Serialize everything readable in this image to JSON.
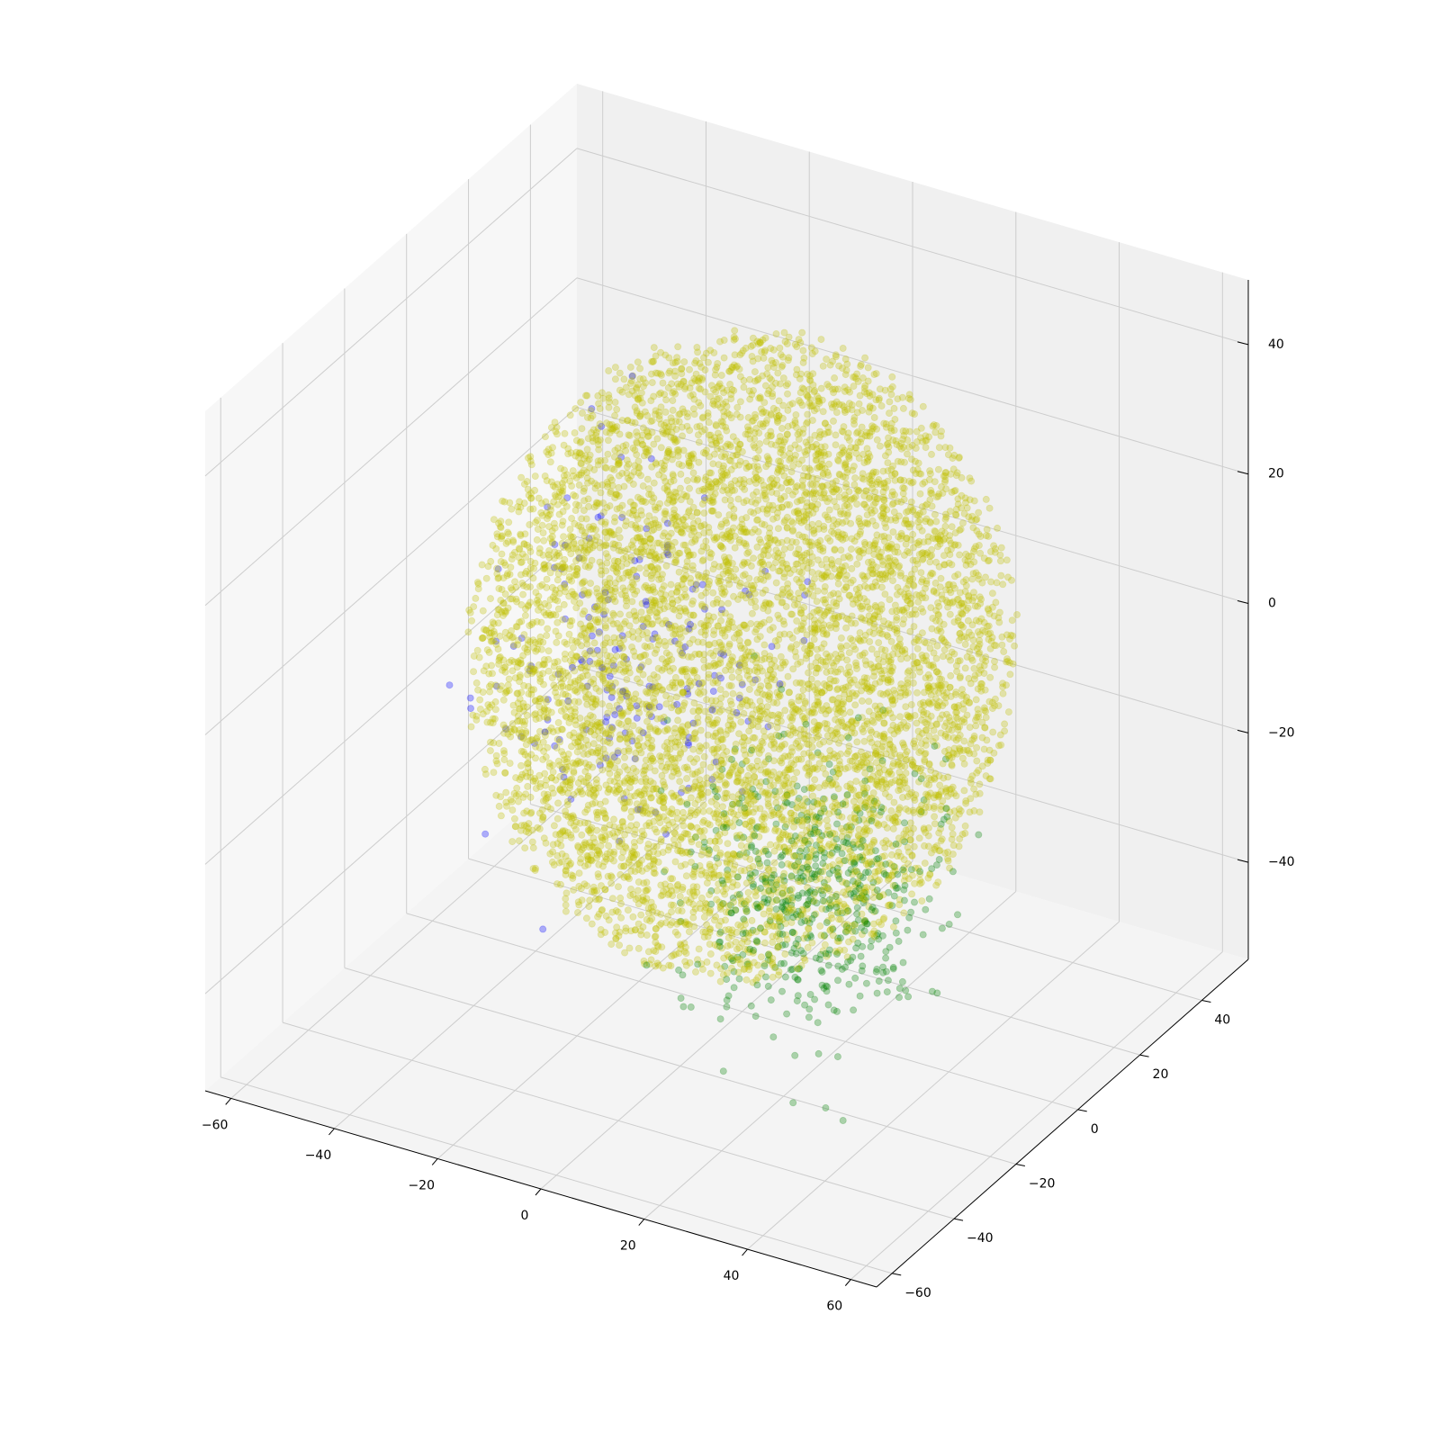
{
  "chart_data": {
    "type": "scatter",
    "projection": "3d",
    "title": "",
    "xlabel": "",
    "ylabel": "",
    "zlabel": "",
    "grid": true,
    "legend": "none",
    "xlim": [
      -65,
      65
    ],
    "ylim": [
      -65,
      55
    ],
    "zlim": [
      -55,
      50
    ],
    "x_ticks": [
      -60,
      -40,
      -20,
      0,
      20,
      40,
      60
    ],
    "x_tick_labels": [
      "−60",
      "−40",
      "−20",
      "0",
      "20",
      "40",
      "60"
    ],
    "y_ticks": [
      -60,
      -40,
      -20,
      0,
      20,
      40
    ],
    "y_tick_labels": [
      "−60",
      "−40",
      "−20",
      "0",
      "20",
      "40"
    ],
    "z_ticks": [
      -40,
      -20,
      0,
      20,
      40
    ],
    "z_tick_labels": [
      "−40",
      "−20",
      "0",
      "20",
      "40"
    ],
    "series": [
      {
        "color": "#bfbf00",
        "alpha": 0.3,
        "count": 7000,
        "shape": "ball",
        "center": [
          0,
          0,
          0
        ],
        "radius": 46
      },
      {
        "color": "#008000",
        "alpha": 0.3,
        "count": 520,
        "shape": "cap",
        "center": [
          20,
          -10,
          -28
        ],
        "radius": 22
      },
      {
        "color": "#0000ff",
        "alpha": 0.3,
        "count": 160,
        "shape": "cap",
        "center": [
          -28,
          10,
          -12
        ],
        "radius": 28
      }
    ]
  }
}
